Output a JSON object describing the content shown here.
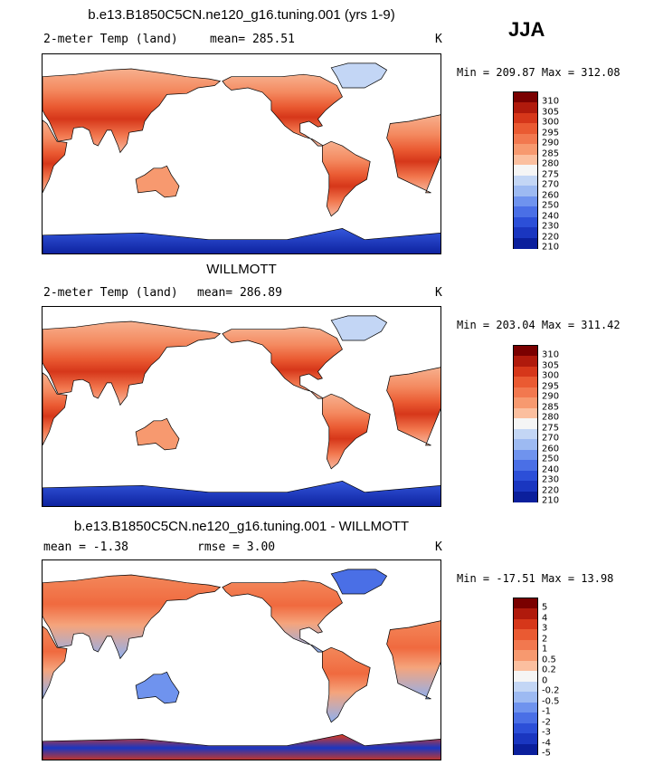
{
  "season": "JJA",
  "panels": [
    {
      "title": "b.e13.B1850C5CN.ne120_g16.tuning.001 (yrs 1-9)",
      "left_label": "2-meter Temp (land)",
      "stat1": "mean= 285.51",
      "stat2": "",
      "units": "K",
      "minmax": "Min = 209.87 Max = 312.08",
      "palette": "abs",
      "colorbar_labels": [
        "310",
        "305",
        "300",
        "295",
        "290",
        "285",
        "280",
        "275",
        "270",
        "260",
        "250",
        "240",
        "230",
        "220",
        "210"
      ]
    },
    {
      "title": "WILLMOTT",
      "left_label": "2-meter Temp (land)",
      "stat1": "mean= 286.89",
      "stat2": "",
      "units": "K",
      "minmax": "Min = 203.04 Max = 311.42",
      "palette": "abs",
      "colorbar_labels": [
        "310",
        "305",
        "300",
        "295",
        "290",
        "285",
        "280",
        "275",
        "270",
        "260",
        "250",
        "240",
        "230",
        "220",
        "210"
      ]
    },
    {
      "title": "b.e13.B1850C5CN.ne120_g16.tuning.001 - WILLMOTT",
      "left_label": "mean =   -1.38",
      "stat1": "rmse =   3.00",
      "stat2": "",
      "units": "K",
      "minmax": "Min = -17.51 Max =  13.98",
      "palette": "diff",
      "colorbar_labels": [
        "5",
        "4",
        "3",
        "2",
        "1",
        "0.5",
        "0.2",
        "0",
        "-0.2",
        "-0.5",
        "-1",
        "-2",
        "-3",
        "-4",
        "-5"
      ]
    }
  ],
  "colors": {
    "abs": [
      "#7a0000",
      "#b01a0c",
      "#d6371a",
      "#ea5a32",
      "#f2784f",
      "#f7996f",
      "#fbbf9f",
      "#f5f5f5",
      "#c3d6f5",
      "#9dbaf2",
      "#6f93ee",
      "#4a6fe6",
      "#2c4fd8",
      "#1a36c0",
      "#0b1f9c"
    ],
    "diff": [
      "#7a0000",
      "#b01a0c",
      "#d6371a",
      "#ea5a32",
      "#f2784f",
      "#f7996f",
      "#fbbf9f",
      "#f5f5f5",
      "#c3d6f5",
      "#9dbaf2",
      "#6f93ee",
      "#4a6fe6",
      "#2c4fd8",
      "#1a36c0",
      "#0b1f9c"
    ]
  }
}
